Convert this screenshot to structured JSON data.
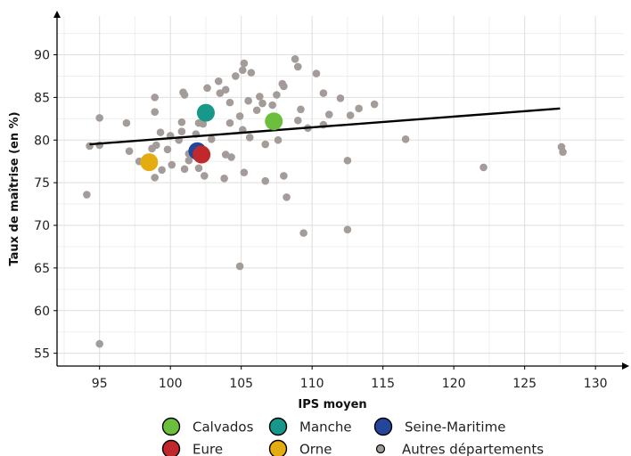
{
  "chart_data": {
    "type": "scatter",
    "xlabel": "IPS moyen",
    "ylabel": "Taux de maîtrise (en %)",
    "xlim": [
      92,
      131.5
    ],
    "ylim": [
      53.5,
      93.5
    ],
    "xticks": [
      95,
      100,
      105,
      110,
      115,
      120,
      125,
      130
    ],
    "yticks": [
      55,
      60,
      65,
      70,
      75,
      80,
      85,
      90
    ],
    "grid": true,
    "legend_position": "bottom",
    "trend_line": {
      "x": [
        94.3,
        127.5
      ],
      "y": [
        79.5,
        83.7
      ],
      "color": "#000000"
    },
    "highlighted": [
      {
        "name": "Calvados",
        "x": 107.3,
        "y": 82.2,
        "color": "#6cbf3c"
      },
      {
        "name": "Manche",
        "x": 102.5,
        "y": 83.2,
        "color": "#17988a"
      },
      {
        "name": "Seine-Maritime",
        "x": 101.9,
        "y": 78.7,
        "color": "#23459a"
      },
      {
        "name": "Eure",
        "x": 102.2,
        "y": 78.3,
        "color": "#c0282b"
      },
      {
        "name": "Orne",
        "x": 98.5,
        "y": 77.4,
        "color": "#e5ac12"
      }
    ],
    "others": {
      "name": "Autres départements",
      "color": "#a39c99",
      "points": [
        [
          94.1,
          73.6
        ],
        [
          94.3,
          79.3
        ],
        [
          95.0,
          82.6
        ],
        [
          95.0,
          79.4
        ],
        [
          95.0,
          56.1
        ],
        [
          96.9,
          82.0
        ],
        [
          97.1,
          78.7
        ],
        [
          97.8,
          77.5
        ],
        [
          98.4,
          77.1
        ],
        [
          98.7,
          79.0
        ],
        [
          98.9,
          85.0
        ],
        [
          98.9,
          83.3
        ],
        [
          98.9,
          75.6
        ],
        [
          99.0,
          79.4
        ],
        [
          99.3,
          80.9
        ],
        [
          99.4,
          76.5
        ],
        [
          99.8,
          78.9
        ],
        [
          100.0,
          80.5
        ],
        [
          100.1,
          77.1
        ],
        [
          100.6,
          80.0
        ],
        [
          100.8,
          82.1
        ],
        [
          100.8,
          81.0
        ],
        [
          100.9,
          85.6
        ],
        [
          101.0,
          85.3
        ],
        [
          101.0,
          76.6
        ],
        [
          101.3,
          78.4
        ],
        [
          101.3,
          77.6
        ],
        [
          101.8,
          80.7
        ],
        [
          102.0,
          82.0
        ],
        [
          102.0,
          76.7
        ],
        [
          102.3,
          81.9
        ],
        [
          102.4,
          75.8
        ],
        [
          102.6,
          86.1
        ],
        [
          102.9,
          80.1
        ],
        [
          103.4,
          86.9
        ],
        [
          103.5,
          85.5
        ],
        [
          103.8,
          75.5
        ],
        [
          103.9,
          85.9
        ],
        [
          103.9,
          78.3
        ],
        [
          104.2,
          84.4
        ],
        [
          104.2,
          82.0
        ],
        [
          104.3,
          78.0
        ],
        [
          104.6,
          87.5
        ],
        [
          104.9,
          82.8
        ],
        [
          104.9,
          65.2
        ],
        [
          105.1,
          88.2
        ],
        [
          105.1,
          81.2
        ],
        [
          105.2,
          89.0
        ],
        [
          105.2,
          76.2
        ],
        [
          105.5,
          84.6
        ],
        [
          105.6,
          80.3
        ],
        [
          105.7,
          87.9
        ],
        [
          106.1,
          83.5
        ],
        [
          106.3,
          85.1
        ],
        [
          106.5,
          84.3
        ],
        [
          106.7,
          79.5
        ],
        [
          106.7,
          75.2
        ],
        [
          107.2,
          84.1
        ],
        [
          107.5,
          85.3
        ],
        [
          107.6,
          80.0
        ],
        [
          107.9,
          86.6
        ],
        [
          108.0,
          86.3
        ],
        [
          108.0,
          75.8
        ],
        [
          108.2,
          73.3
        ],
        [
          108.8,
          89.5
        ],
        [
          109.0,
          88.6
        ],
        [
          109.0,
          82.3
        ],
        [
          109.2,
          83.6
        ],
        [
          109.4,
          69.1
        ],
        [
          109.7,
          81.4
        ],
        [
          110.3,
          87.8
        ],
        [
          110.8,
          85.5
        ],
        [
          110.8,
          81.8
        ],
        [
          111.2,
          83.0
        ],
        [
          112.0,
          84.9
        ],
        [
          112.5,
          77.6
        ],
        [
          112.5,
          69.5
        ],
        [
          112.7,
          82.9
        ],
        [
          113.3,
          83.7
        ],
        [
          114.4,
          84.2
        ],
        [
          116.6,
          80.1
        ],
        [
          122.1,
          76.8
        ],
        [
          127.6,
          79.2
        ],
        [
          127.7,
          78.6
        ]
      ]
    }
  }
}
